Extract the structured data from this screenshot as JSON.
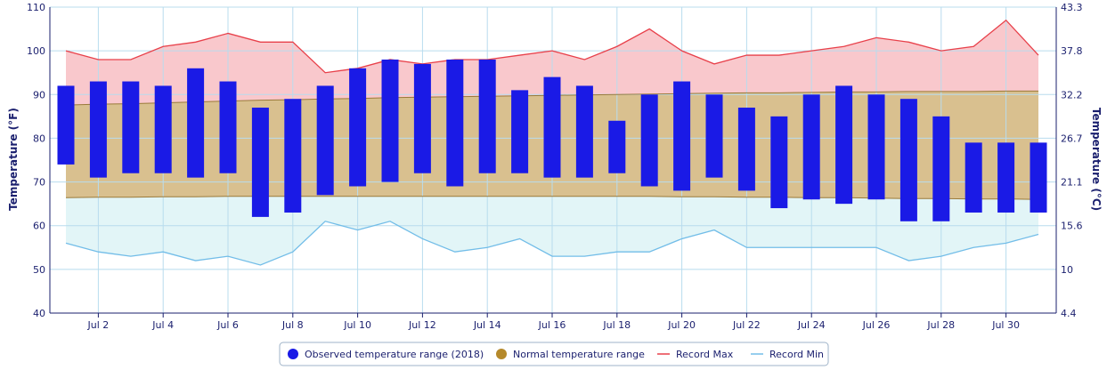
{
  "chart_data": {
    "type": "bar",
    "x_tick_labels": [
      "Jul 2",
      "Jul 4",
      "Jul 6",
      "Jul 8",
      "Jul 10",
      "Jul 12",
      "Jul 14",
      "Jul 16",
      "Jul 18",
      "Jul 20",
      "Jul 22",
      "Jul 24",
      "Jul 26",
      "Jul 28",
      "Jul 30"
    ],
    "ylabel_left": "Temperature (°F)",
    "ylabel_right": "Temperature (°C)",
    "ylim": [
      40,
      110
    ],
    "yticks_left": [
      40,
      50,
      60,
      70,
      80,
      90,
      100,
      110
    ],
    "yticks_right": [
      "4.4",
      "10",
      "15.6",
      "21.1",
      "26.7",
      "32.2",
      "37.8",
      "43.3"
    ],
    "grid": true,
    "legend_position": "bottom-center",
    "days": [
      1,
      2,
      3,
      4,
      5,
      6,
      7,
      8,
      9,
      10,
      11,
      12,
      13,
      14,
      15,
      16,
      17,
      18,
      19,
      20,
      21,
      22,
      23,
      24,
      25,
      26,
      27,
      28,
      29,
      30,
      31
    ],
    "series": [
      {
        "name": "Observed temperature range (2018)",
        "kind": "range-bar",
        "color": "#1a1ae6",
        "low": [
          74,
          71,
          72,
          72,
          71,
          72,
          62,
          63,
          67,
          69,
          70,
          72,
          69,
          72,
          72,
          71,
          71,
          72,
          69,
          68,
          71,
          68,
          64,
          66,
          65,
          66,
          61,
          61,
          63,
          63,
          63
        ],
        "high": [
          92,
          93,
          93,
          92,
          96,
          93,
          87,
          89,
          92,
          96,
          98,
          97,
          98,
          98,
          91,
          94,
          92,
          84,
          90,
          93,
          90,
          87,
          85,
          90,
          92,
          90,
          89,
          85,
          79,
          79,
          79
        ]
      },
      {
        "name": "Normal temperature range",
        "kind": "range-area",
        "color": "#b5892b",
        "low": [
          66.4,
          66.5,
          66.5,
          66.6,
          66.6,
          66.7,
          66.7,
          66.7,
          66.7,
          66.7,
          66.7,
          66.7,
          66.7,
          66.7,
          66.7,
          66.7,
          66.7,
          66.7,
          66.7,
          66.6,
          66.6,
          66.5,
          66.5,
          66.4,
          66.4,
          66.3,
          66.2,
          66.2,
          66.1,
          66.1,
          66.0
        ],
        "high": [
          87.6,
          87.8,
          87.9,
          88.1,
          88.3,
          88.5,
          88.7,
          88.8,
          89.0,
          89.1,
          89.3,
          89.4,
          89.5,
          89.6,
          89.7,
          89.8,
          89.9,
          90.0,
          90.1,
          90.2,
          90.3,
          90.4,
          90.4,
          90.5,
          90.6,
          90.6,
          90.7,
          90.7,
          90.7,
          90.8,
          90.8
        ]
      },
      {
        "name": "Record Max",
        "kind": "line",
        "color": "#e8404a",
        "values": [
          100,
          98,
          98,
          101,
          102,
          104,
          102,
          102,
          95,
          96,
          98,
          97,
          98,
          98,
          99,
          100,
          98,
          101,
          105,
          100,
          97,
          99,
          99,
          100,
          101,
          103,
          102,
          100,
          101,
          107,
          99
        ]
      },
      {
        "name": "Record Min",
        "kind": "line",
        "color": "#72bde8",
        "values": [
          56,
          54,
          53,
          54,
          52,
          53,
          51,
          54,
          61,
          59,
          61,
          57,
          54,
          55,
          57,
          53,
          53,
          54,
          54,
          57,
          59,
          55,
          55,
          55,
          55,
          55,
          52,
          53,
          55,
          56,
          58
        ]
      }
    ]
  },
  "legend": {
    "items": [
      {
        "label": "Observed temperature range (2018)",
        "symbol": "dot",
        "color": "#1a1ae6"
      },
      {
        "label": "Normal temperature range",
        "symbol": "dot",
        "color": "#b5892b"
      },
      {
        "label": "Record Max",
        "symbol": "line",
        "color": "#e8404a"
      },
      {
        "label": "Record Min",
        "symbol": "line",
        "color": "#72bde8"
      }
    ]
  },
  "colors": {
    "record_band_fill": "#f9c8cc",
    "normal_band_fill": "#d9c08f",
    "min_band_fill": "#e2f5f7",
    "grid": "#b8dcee",
    "axis_text": "#1a1f6e"
  }
}
